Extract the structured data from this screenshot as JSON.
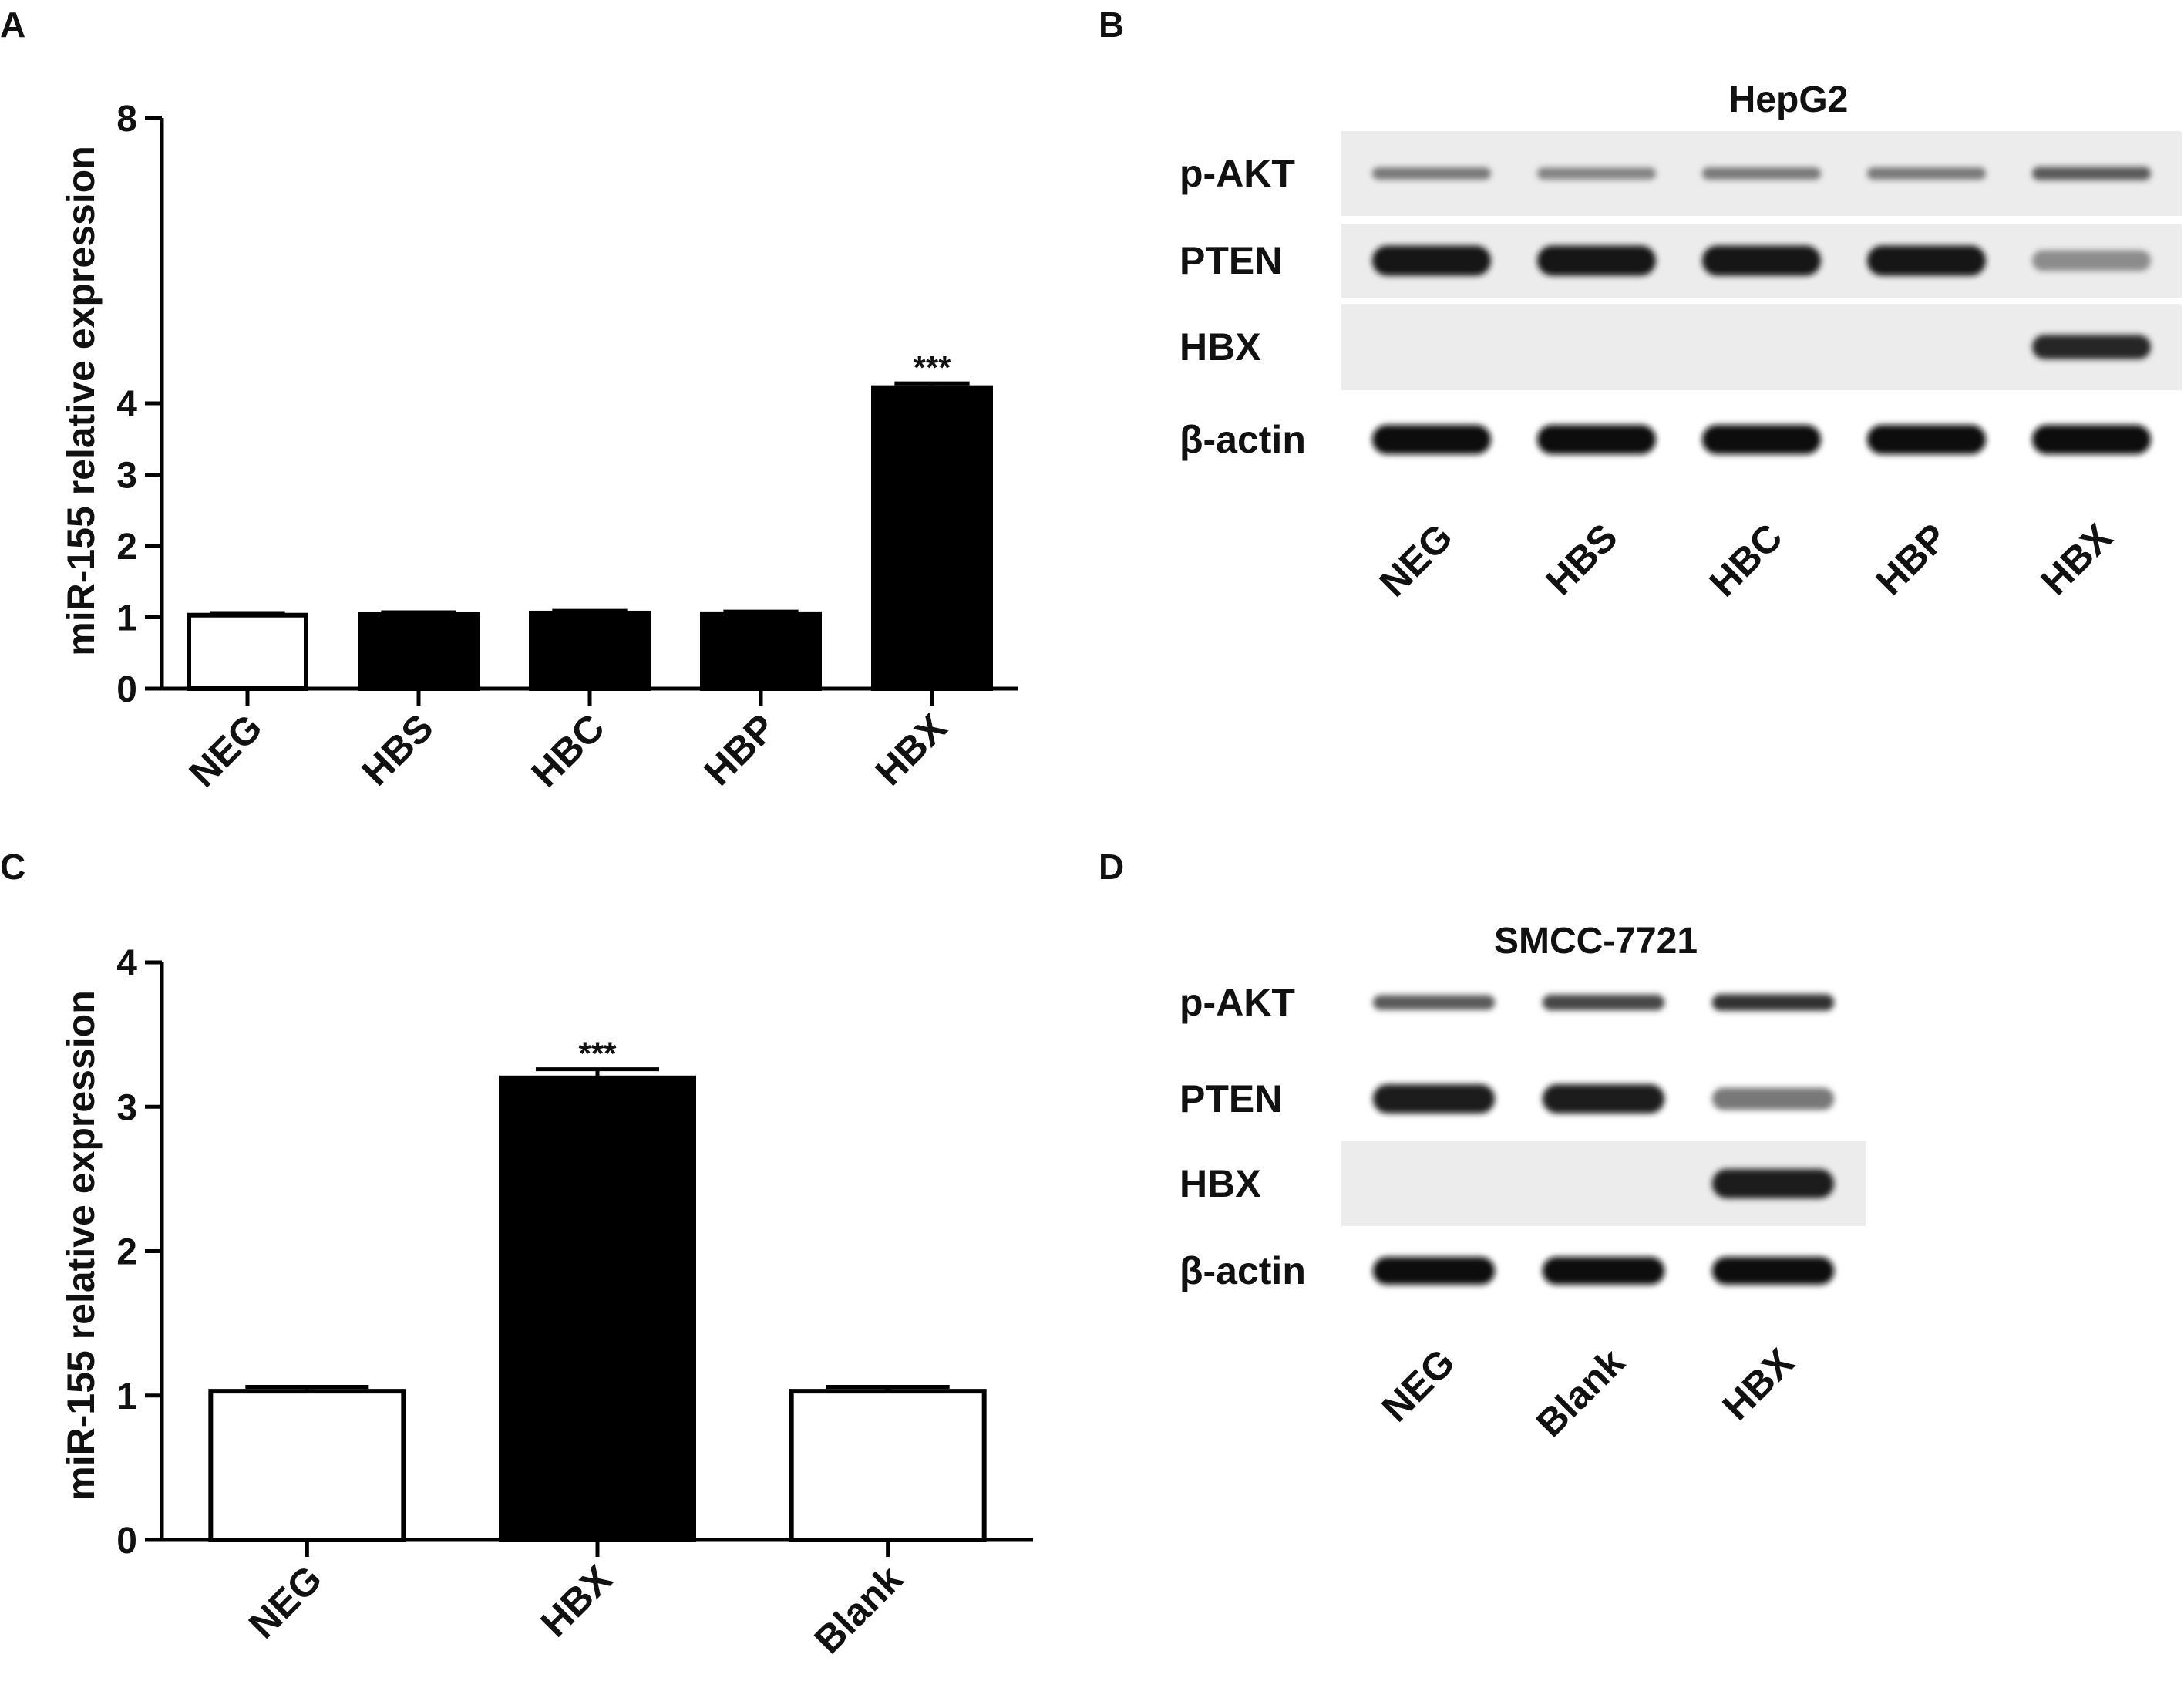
{
  "panels": [
    {
      "label": "A"
    },
    {
      "label": "B"
    },
    {
      "label": "C"
    },
    {
      "label": "D"
    }
  ],
  "chart_data": [
    {
      "panel": "A",
      "type": "bar",
      "categories": [
        "NEG",
        "HBS",
        "HBC",
        "HBP",
        "HBX"
      ],
      "values": [
        1.03,
        1.04,
        1.06,
        1.05,
        4.22
      ],
      "errors": [
        0.03,
        0.03,
        0.03,
        0.03,
        0.06
      ],
      "bar_fill": [
        "#ffffff",
        "#000000",
        "#000000",
        "#000000",
        "#000000"
      ],
      "annotations": [
        "",
        "",
        "",
        "",
        "***"
      ],
      "xlabel": "",
      "ylabel": "miR-155 relative expression",
      "ylim": [
        0,
        8
      ],
      "yticks": [
        0,
        1,
        2,
        3,
        4,
        8
      ],
      "grid": false,
      "legend": "none"
    },
    {
      "panel": "C",
      "type": "bar",
      "categories": [
        "NEG",
        "HBX",
        "Blank"
      ],
      "values": [
        1.03,
        3.2,
        1.03
      ],
      "errors": [
        0.03,
        0.06,
        0.03
      ],
      "bar_fill": [
        "#ffffff",
        "#000000",
        "#ffffff"
      ],
      "annotations": [
        "",
        "***",
        ""
      ],
      "xlabel": "",
      "ylabel": "miR-155 relative expression",
      "ylim": [
        0,
        4
      ],
      "yticks": [
        0,
        1,
        2,
        3,
        4
      ],
      "grid": false,
      "legend": "none"
    }
  ],
  "blots": [
    {
      "panel": "B",
      "cell_line": "HepG2",
      "rows": [
        "p-AKT",
        "PTEN",
        "HBX",
        "β-actin"
      ],
      "lanes": [
        "NEG",
        "HBS",
        "HBC",
        "HBP",
        "HBX"
      ],
      "intensity": [
        [
          0.45,
          0.4,
          0.45,
          0.45,
          0.6
        ],
        [
          0.95,
          0.95,
          0.95,
          0.95,
          0.35
        ],
        [
          0,
          0,
          0,
          0,
          0.85
        ],
        [
          1,
          1,
          1,
          1,
          1
        ]
      ]
    },
    {
      "panel": "D",
      "cell_line": "SMCC-7721",
      "rows": [
        "p-AKT",
        "PTEN",
        "HBX",
        "β-actin"
      ],
      "lanes": [
        "NEG",
        "Blank",
        "HBX"
      ],
      "intensity": [
        [
          0.6,
          0.7,
          0.8
        ],
        [
          0.9,
          0.9,
          0.45
        ],
        [
          0,
          0,
          0.9
        ],
        [
          1,
          1,
          1
        ]
      ]
    }
  ]
}
